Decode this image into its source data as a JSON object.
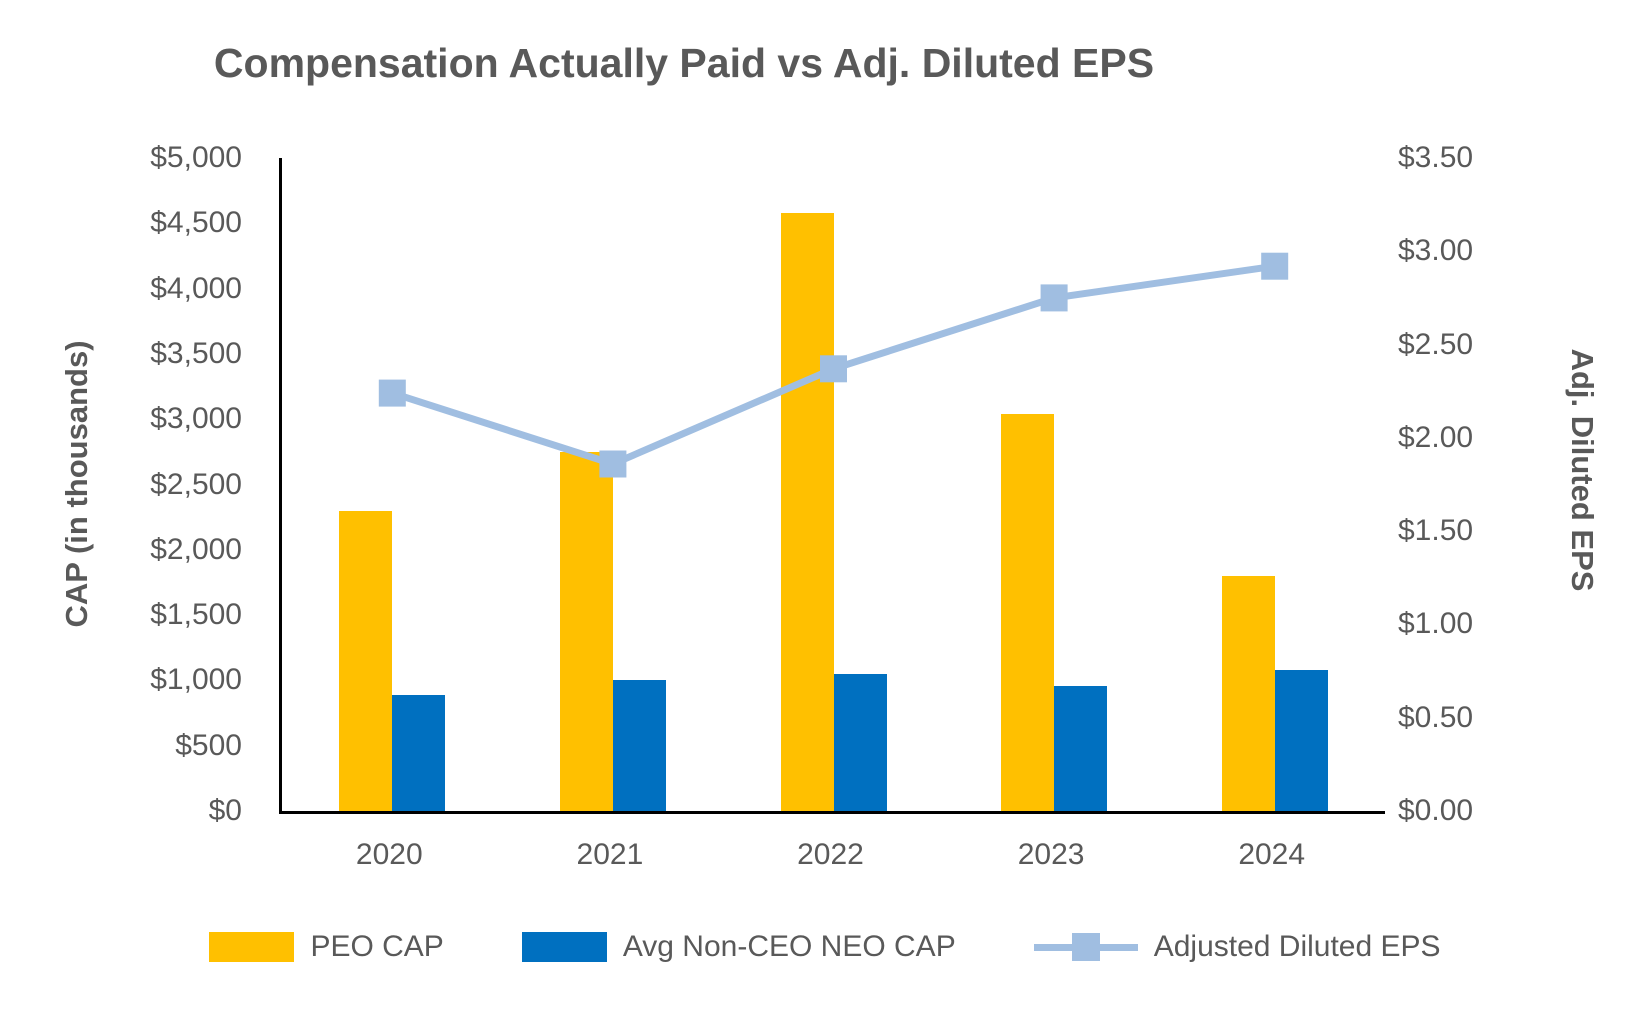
{
  "chart_data": {
    "type": "bar+line-combo",
    "title": "Compensation Actually Paid vs Adj. Diluted EPS",
    "categories": [
      "2020",
      "2021",
      "2022",
      "2023",
      "2024"
    ],
    "series": [
      {
        "name": "PEO CAP",
        "type": "bar",
        "axis": "left",
        "color": "#FFC000",
        "values": [
          2300,
          2750,
          4580,
          3040,
          1800
        ]
      },
      {
        "name": "Avg Non-CEO NEO CAP",
        "type": "bar",
        "axis": "left",
        "color": "#0070C0",
        "values": [
          885,
          1000,
          1050,
          955,
          1080
        ]
      },
      {
        "name": "Adjusted Diluted EPS",
        "type": "line",
        "axis": "right",
        "color": "#A0BEE1",
        "values": [
          2.24,
          1.86,
          2.37,
          2.75,
          2.92
        ]
      }
    ],
    "left_axis": {
      "title": "CAP (in thousands)",
      "min": 0,
      "max": 5000,
      "tick_step": 500,
      "tick_labels": [
        "$0",
        "$500",
        "$1,000",
        "$1,500",
        "$2,000",
        "$2,500",
        "$3,000",
        "$3,500",
        "$4,000",
        "$4,500",
        "$5,000"
      ]
    },
    "right_axis": {
      "title": "Adj. Diluted EPS",
      "min": 0,
      "max": 3.5,
      "tick_step": 0.5,
      "tick_labels": [
        "$0.00",
        "$0.50",
        "$1.00",
        "$1.50",
        "$2.00",
        "$2.50",
        "$3.00",
        "$3.50"
      ]
    },
    "legend": [
      "PEO CAP",
      "Avg Non-CEO NEO CAP",
      "Adjusted Diluted EPS"
    ],
    "layout": {
      "grid": false,
      "legend_position": "bottom",
      "background": "#FFFFFF",
      "text_color": "#595959"
    }
  }
}
